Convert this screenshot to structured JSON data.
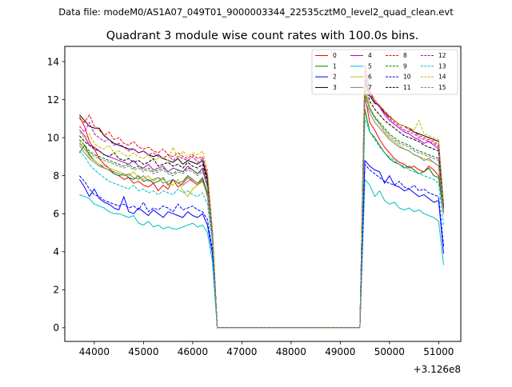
{
  "chart_data": {
    "type": "line",
    "suptitle": "Data file: modeM0/AS1A07_049T01_9000003344_22535cztM0_level2_quad_clean.evt",
    "title": "Quadrant 3 module wise count rates with 100.0s bins.",
    "xlabel": "",
    "ylabel": "",
    "x_offset_label": "+3.126e8",
    "xlim": [
      43400,
      51450
    ],
    "ylim": [
      -0.72,
      14.8
    ],
    "x_ticks": [
      44000,
      45000,
      46000,
      47000,
      48000,
      49000,
      50000,
      51000
    ],
    "x_tick_labels": [
      "44000",
      "45000",
      "46000",
      "47000",
      "48000",
      "49000",
      "50000",
      "51000"
    ],
    "y_ticks": [
      0,
      2,
      4,
      6,
      8,
      10,
      12,
      14
    ],
    "y_tick_labels": [
      "0",
      "2",
      "4",
      "6",
      "8",
      "10",
      "12",
      "14"
    ],
    "legend_position": "upper-right",
    "segments": {
      "seg1": {
        "x_start": 43700,
        "step": 100,
        "count": 28,
        "drop_x": 46500
      },
      "gap": {
        "x_start": 46600,
        "x_end": 49400,
        "value": 0
      },
      "seg2": {
        "x_start": 49500,
        "step": 100,
        "count": 17
      }
    },
    "series": [
      {
        "name": "0",
        "color": "#ff0000",
        "dashed": false,
        "seg1": [
          11.1,
          10.6,
          9.8,
          9.4,
          8.9,
          8.6,
          8.4,
          8.1,
          8.0,
          7.8,
          7.9,
          7.6,
          7.7,
          7.5,
          7.4,
          7.6,
          7.2,
          7.5,
          7.3,
          7.8,
          7.4,
          7.6,
          7.9,
          7.7,
          7.5,
          7.8,
          6.9,
          4.8
        ],
        "seg2": [
          12.2,
          10.8,
          10.4,
          9.9,
          9.5,
          9.2,
          8.9,
          8.7,
          8.6,
          8.4,
          8.5,
          8.3,
          8.2,
          8.5,
          8.3,
          8.0,
          6.1
        ]
      },
      {
        "name": "1",
        "color": "#008000",
        "dashed": false,
        "seg1": [
          9.2,
          9.6,
          9.1,
          8.8,
          8.6,
          8.4,
          8.3,
          8.1,
          8.0,
          8.1,
          7.9,
          7.8,
          8.0,
          7.7,
          7.8,
          7.6,
          7.7,
          7.9,
          7.5,
          7.8,
          7.6,
          7.7,
          8.0,
          7.8,
          7.6,
          7.9,
          7.1,
          4.7
        ],
        "seg2": [
          11.5,
          10.3,
          10.0,
          9.6,
          9.2,
          8.9,
          8.7,
          8.6,
          8.4,
          8.5,
          8.3,
          8.1,
          8.2,
          8.4,
          8.0,
          7.9,
          6.0
        ]
      },
      {
        "name": "2",
        "color": "#0000ff",
        "dashed": false,
        "seg1": [
          7.8,
          7.4,
          6.9,
          7.3,
          6.8,
          6.6,
          6.5,
          6.3,
          6.2,
          6.9,
          6.1,
          6.0,
          6.3,
          6.1,
          5.9,
          6.2,
          6.0,
          5.8,
          6.1,
          6.0,
          5.9,
          5.8,
          6.1,
          5.9,
          5.8,
          6.0,
          5.4,
          3.9
        ],
        "seg2": [
          8.8,
          8.5,
          8.3,
          8.2,
          7.6,
          8.0,
          7.5,
          7.4,
          7.2,
          7.3,
          7.1,
          6.9,
          7.0,
          6.8,
          6.6,
          6.7,
          3.9
        ]
      },
      {
        "name": "3",
        "color": "#000000",
        "dashed": false,
        "seg1": [
          11.2,
          10.9,
          10.6,
          10.5,
          10.5,
          10.1,
          9.9,
          9.7,
          9.6,
          9.5,
          9.4,
          9.4,
          9.2,
          9.3,
          9.1,
          9.0,
          9.1,
          8.9,
          8.8,
          8.7,
          8.9,
          8.6,
          8.8,
          8.7,
          8.6,
          8.8,
          7.8,
          5.0
        ],
        "seg2": [
          13.1,
          12.2,
          11.8,
          11.7,
          11.3,
          11.1,
          10.9,
          10.7,
          10.6,
          10.5,
          10.3,
          10.2,
          10.1,
          10.0,
          9.9,
          9.8,
          6.3
        ]
      },
      {
        "name": "4",
        "color": "#bf00bf",
        "dashed": false,
        "seg1": [
          10.4,
          10.1,
          9.6,
          9.5,
          9.3,
          9.1,
          9.0,
          8.9,
          8.8,
          8.7,
          8.6,
          8.8,
          8.5,
          8.4,
          8.6,
          8.3,
          8.4,
          8.5,
          8.2,
          8.4,
          8.3,
          8.2,
          8.5,
          8.3,
          8.1,
          8.4,
          7.5,
          4.9
        ],
        "seg2": [
          13.8,
          12.5,
          11.9,
          11.6,
          11.2,
          10.9,
          10.7,
          10.5,
          10.3,
          10.2,
          10.0,
          9.9,
          9.7,
          9.8,
          9.6,
          9.4,
          6.2
        ]
      },
      {
        "name": "5",
        "color": "#00bfbf",
        "dashed": false,
        "seg1": [
          7.0,
          6.9,
          6.8,
          6.5,
          6.4,
          6.3,
          6.1,
          6.0,
          6.0,
          5.9,
          5.8,
          5.9,
          5.5,
          5.4,
          5.6,
          5.3,
          5.4,
          5.2,
          5.3,
          5.2,
          5.2,
          5.3,
          5.4,
          5.5,
          5.3,
          5.4,
          5.0,
          3.5
        ],
        "seg2": [
          7.8,
          7.5,
          6.9,
          7.2,
          6.7,
          6.5,
          6.6,
          6.3,
          6.2,
          6.3,
          6.1,
          6.2,
          6.0,
          5.9,
          5.8,
          5.6,
          3.3
        ]
      },
      {
        "name": "6",
        "color": "#bfbf00",
        "dashed": false,
        "seg1": [
          9.8,
          9.4,
          9.0,
          8.8,
          8.6,
          8.5,
          8.4,
          8.3,
          8.2,
          8.1,
          8.0,
          8.2,
          7.9,
          7.8,
          8.0,
          7.7,
          7.9,
          7.8,
          7.6,
          7.5,
          7.8,
          7.2,
          6.9,
          7.3,
          7.5,
          7.7,
          7.0,
          4.8
        ],
        "seg2": [
          12.6,
          11.6,
          11.1,
          10.7,
          10.3,
          10.0,
          9.8,
          9.6,
          9.4,
          9.3,
          9.1,
          9.0,
          8.9,
          8.8,
          8.7,
          8.5,
          6.1
        ]
      },
      {
        "name": "7",
        "color": "#808080",
        "dashed": false,
        "seg1": [
          9.6,
          9.2,
          8.9,
          8.7,
          8.5,
          8.4,
          8.3,
          8.2,
          8.1,
          8.0,
          8.1,
          7.9,
          7.8,
          8.0,
          7.7,
          7.8,
          7.9,
          7.6,
          7.7,
          7.8,
          7.6,
          7.5,
          7.7,
          7.8,
          7.6,
          7.7,
          7.0,
          4.7
        ],
        "seg2": [
          12.0,
          11.3,
          10.8,
          10.5,
          10.2,
          9.9,
          9.7,
          9.5,
          9.4,
          9.3,
          9.1,
          9.0,
          8.8,
          8.9,
          8.7,
          8.5,
          6.0
        ]
      },
      {
        "name": "8",
        "color": "#ff0000",
        "dashed": true,
        "seg1": [
          11.0,
          10.8,
          11.2,
          10.6,
          10.4,
          10.1,
          10.3,
          9.9,
          10.0,
          9.7,
          9.6,
          9.8,
          9.5,
          9.4,
          9.5,
          9.3,
          9.2,
          9.4,
          9.1,
          9.0,
          9.2,
          9.0,
          8.9,
          9.1,
          8.9,
          9.0,
          8.1,
          5.2
        ],
        "seg2": [
          13.4,
          12.3,
          11.9,
          11.7,
          11.4,
          11.1,
          10.9,
          10.7,
          10.6,
          10.4,
          10.3,
          10.1,
          10.0,
          9.9,
          9.8,
          9.6,
          6.5
        ]
      },
      {
        "name": "9",
        "color": "#008000",
        "dashed": true,
        "seg1": [
          9.9,
          9.6,
          9.3,
          9.1,
          9.0,
          8.9,
          8.8,
          8.7,
          8.6,
          8.5,
          8.6,
          8.4,
          8.5,
          8.3,
          8.4,
          8.2,
          8.3,
          8.4,
          8.2,
          8.1,
          8.3,
          8.2,
          8.4,
          8.3,
          8.1,
          8.3,
          7.5,
          4.9
        ],
        "seg2": [
          12.4,
          11.5,
          11.1,
          10.8,
          10.5,
          10.2,
          10.0,
          9.8,
          9.7,
          9.6,
          9.4,
          9.3,
          9.2,
          9.1,
          9.0,
          8.9,
          6.3
        ]
      },
      {
        "name": "10",
        "color": "#0000ff",
        "dashed": true,
        "seg1": [
          8.0,
          7.7,
          7.3,
          7.0,
          6.9,
          6.7,
          6.6,
          6.5,
          6.4,
          6.5,
          6.3,
          6.4,
          6.2,
          6.6,
          6.1,
          6.3,
          6.2,
          6.4,
          6.3,
          6.1,
          6.5,
          6.2,
          6.3,
          6.4,
          6.2,
          6.1,
          5.7,
          4.1
        ],
        "seg2": [
          8.6,
          8.3,
          8.1,
          7.9,
          7.7,
          7.6,
          7.5,
          7.7,
          7.4,
          7.3,
          7.5,
          7.2,
          7.3,
          7.1,
          7.0,
          6.9,
          4.3
        ]
      },
      {
        "name": "11",
        "color": "#000000",
        "dashed": true,
        "seg1": [
          10.1,
          9.8,
          9.6,
          9.4,
          9.3,
          9.1,
          9.0,
          9.2,
          8.9,
          8.8,
          8.9,
          8.7,
          8.8,
          8.6,
          8.7,
          8.9,
          8.5,
          8.6,
          8.7,
          8.5,
          8.6,
          8.4,
          8.7,
          8.5,
          8.4,
          8.6,
          7.7,
          5.0
        ],
        "seg2": [
          12.9,
          11.9,
          11.5,
          11.2,
          10.9,
          10.7,
          10.5,
          10.3,
          10.1,
          10.0,
          9.9,
          9.8,
          9.6,
          9.5,
          9.4,
          9.3,
          6.4
        ]
      },
      {
        "name": "12",
        "color": "#bf00bf",
        "dashed": true,
        "seg1": [
          10.6,
          10.3,
          10.8,
          10.2,
          10.0,
          9.8,
          9.9,
          9.6,
          9.7,
          9.5,
          9.3,
          9.4,
          9.2,
          9.3,
          9.1,
          9.2,
          9.0,
          8.9,
          9.1,
          8.8,
          9.0,
          8.9,
          8.8,
          9.0,
          8.7,
          8.9,
          8.0,
          5.1
        ],
        "seg2": [
          13.5,
          12.4,
          11.9,
          11.6,
          11.3,
          11.0,
          10.8,
          10.6,
          10.4,
          10.3,
          10.2,
          10.0,
          9.9,
          9.8,
          9.7,
          9.5,
          6.4
        ]
      },
      {
        "name": "13",
        "color": "#00bfbf",
        "dashed": true,
        "seg1": [
          9.3,
          9.0,
          8.6,
          8.3,
          8.1,
          7.9,
          7.7,
          7.6,
          7.5,
          7.4,
          7.3,
          7.5,
          7.2,
          7.3,
          7.1,
          7.2,
          7.0,
          7.2,
          7.1,
          7.0,
          7.3,
          7.1,
          7.2,
          7.0,
          6.9,
          7.1,
          6.5,
          4.5
        ],
        "seg2": [
          11.0,
          10.3,
          9.9,
          9.5,
          9.2,
          9.0,
          8.8,
          8.6,
          8.5,
          8.3,
          8.2,
          8.1,
          8.0,
          7.9,
          7.8,
          7.6,
          5.4
        ]
      },
      {
        "name": "14",
        "color": "#bfbf00",
        "dashed": true,
        "seg1": [
          10.3,
          10.0,
          10.2,
          9.7,
          9.5,
          9.4,
          9.6,
          9.2,
          9.3,
          9.1,
          9.0,
          9.2,
          9.0,
          8.9,
          9.1,
          8.8,
          8.9,
          9.0,
          8.8,
          9.5,
          8.9,
          9.3,
          9.0,
          9.2,
          9.1,
          9.3,
          8.3,
          5.1
        ],
        "seg2": [
          13.7,
          12.5,
          12.0,
          11.7,
          11.4,
          11.2,
          10.9,
          10.7,
          10.6,
          10.5,
          10.4,
          10.9,
          10.2,
          10.1,
          10.0,
          9.9,
          6.6
        ]
      },
      {
        "name": "15",
        "color": "#808080",
        "dashed": true,
        "seg1": [
          9.7,
          9.4,
          9.2,
          9.0,
          8.9,
          8.8,
          8.7,
          8.6,
          8.5,
          8.4,
          8.5,
          8.3,
          8.4,
          8.2,
          8.3,
          8.1,
          8.2,
          8.3,
          8.1,
          8.0,
          8.2,
          8.1,
          8.3,
          8.2,
          8.0,
          8.2,
          7.4,
          4.9
        ],
        "seg2": [
          12.3,
          11.5,
          11.0,
          10.7,
          10.4,
          10.1,
          9.9,
          9.7,
          9.6,
          9.5,
          9.3,
          9.2,
          9.1,
          9.0,
          8.9,
          8.8,
          6.2
        ]
      }
    ]
  }
}
